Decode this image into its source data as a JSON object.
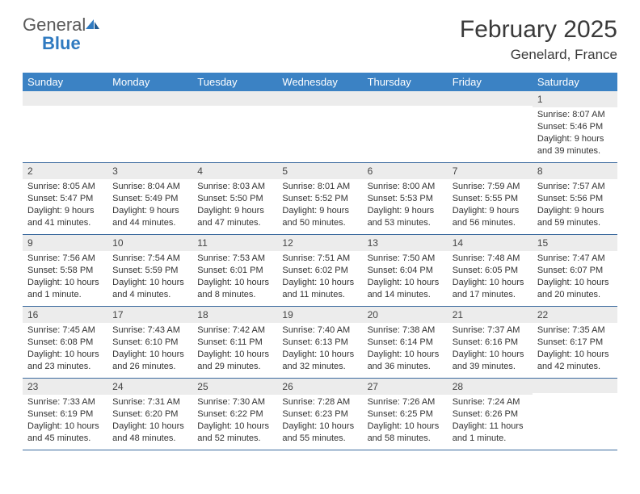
{
  "brand": {
    "part1": "General",
    "part2": "Blue"
  },
  "title": "February 2025",
  "location": "Genelard, France",
  "colors": {
    "header_bar": "#3b82c4",
    "header_text": "#ffffff",
    "daynum_bg": "#ececec",
    "row_border": "#3b6a9e",
    "text": "#333333",
    "logo_gray": "#5a5a5a",
    "logo_blue": "#2f7ac0"
  },
  "days_of_week": [
    "Sunday",
    "Monday",
    "Tuesday",
    "Wednesday",
    "Thursday",
    "Friday",
    "Saturday"
  ],
  "weeks": [
    [
      {
        "n": "",
        "sr": "",
        "ss": "",
        "dl": ""
      },
      {
        "n": "",
        "sr": "",
        "ss": "",
        "dl": ""
      },
      {
        "n": "",
        "sr": "",
        "ss": "",
        "dl": ""
      },
      {
        "n": "",
        "sr": "",
        "ss": "",
        "dl": ""
      },
      {
        "n": "",
        "sr": "",
        "ss": "",
        "dl": ""
      },
      {
        "n": "",
        "sr": "",
        "ss": "",
        "dl": ""
      },
      {
        "n": "1",
        "sr": "Sunrise: 8:07 AM",
        "ss": "Sunset: 5:46 PM",
        "dl": "Daylight: 9 hours and 39 minutes."
      }
    ],
    [
      {
        "n": "2",
        "sr": "Sunrise: 8:05 AM",
        "ss": "Sunset: 5:47 PM",
        "dl": "Daylight: 9 hours and 41 minutes."
      },
      {
        "n": "3",
        "sr": "Sunrise: 8:04 AM",
        "ss": "Sunset: 5:49 PM",
        "dl": "Daylight: 9 hours and 44 minutes."
      },
      {
        "n": "4",
        "sr": "Sunrise: 8:03 AM",
        "ss": "Sunset: 5:50 PM",
        "dl": "Daylight: 9 hours and 47 minutes."
      },
      {
        "n": "5",
        "sr": "Sunrise: 8:01 AM",
        "ss": "Sunset: 5:52 PM",
        "dl": "Daylight: 9 hours and 50 minutes."
      },
      {
        "n": "6",
        "sr": "Sunrise: 8:00 AM",
        "ss": "Sunset: 5:53 PM",
        "dl": "Daylight: 9 hours and 53 minutes."
      },
      {
        "n": "7",
        "sr": "Sunrise: 7:59 AM",
        "ss": "Sunset: 5:55 PM",
        "dl": "Daylight: 9 hours and 56 minutes."
      },
      {
        "n": "8",
        "sr": "Sunrise: 7:57 AM",
        "ss": "Sunset: 5:56 PM",
        "dl": "Daylight: 9 hours and 59 minutes."
      }
    ],
    [
      {
        "n": "9",
        "sr": "Sunrise: 7:56 AM",
        "ss": "Sunset: 5:58 PM",
        "dl": "Daylight: 10 hours and 1 minute."
      },
      {
        "n": "10",
        "sr": "Sunrise: 7:54 AM",
        "ss": "Sunset: 5:59 PM",
        "dl": "Daylight: 10 hours and 4 minutes."
      },
      {
        "n": "11",
        "sr": "Sunrise: 7:53 AM",
        "ss": "Sunset: 6:01 PM",
        "dl": "Daylight: 10 hours and 8 minutes."
      },
      {
        "n": "12",
        "sr": "Sunrise: 7:51 AM",
        "ss": "Sunset: 6:02 PM",
        "dl": "Daylight: 10 hours and 11 minutes."
      },
      {
        "n": "13",
        "sr": "Sunrise: 7:50 AM",
        "ss": "Sunset: 6:04 PM",
        "dl": "Daylight: 10 hours and 14 minutes."
      },
      {
        "n": "14",
        "sr": "Sunrise: 7:48 AM",
        "ss": "Sunset: 6:05 PM",
        "dl": "Daylight: 10 hours and 17 minutes."
      },
      {
        "n": "15",
        "sr": "Sunrise: 7:47 AM",
        "ss": "Sunset: 6:07 PM",
        "dl": "Daylight: 10 hours and 20 minutes."
      }
    ],
    [
      {
        "n": "16",
        "sr": "Sunrise: 7:45 AM",
        "ss": "Sunset: 6:08 PM",
        "dl": "Daylight: 10 hours and 23 minutes."
      },
      {
        "n": "17",
        "sr": "Sunrise: 7:43 AM",
        "ss": "Sunset: 6:10 PM",
        "dl": "Daylight: 10 hours and 26 minutes."
      },
      {
        "n": "18",
        "sr": "Sunrise: 7:42 AM",
        "ss": "Sunset: 6:11 PM",
        "dl": "Daylight: 10 hours and 29 minutes."
      },
      {
        "n": "19",
        "sr": "Sunrise: 7:40 AM",
        "ss": "Sunset: 6:13 PM",
        "dl": "Daylight: 10 hours and 32 minutes."
      },
      {
        "n": "20",
        "sr": "Sunrise: 7:38 AM",
        "ss": "Sunset: 6:14 PM",
        "dl": "Daylight: 10 hours and 36 minutes."
      },
      {
        "n": "21",
        "sr": "Sunrise: 7:37 AM",
        "ss": "Sunset: 6:16 PM",
        "dl": "Daylight: 10 hours and 39 minutes."
      },
      {
        "n": "22",
        "sr": "Sunrise: 7:35 AM",
        "ss": "Sunset: 6:17 PM",
        "dl": "Daylight: 10 hours and 42 minutes."
      }
    ],
    [
      {
        "n": "23",
        "sr": "Sunrise: 7:33 AM",
        "ss": "Sunset: 6:19 PM",
        "dl": "Daylight: 10 hours and 45 minutes."
      },
      {
        "n": "24",
        "sr": "Sunrise: 7:31 AM",
        "ss": "Sunset: 6:20 PM",
        "dl": "Daylight: 10 hours and 48 minutes."
      },
      {
        "n": "25",
        "sr": "Sunrise: 7:30 AM",
        "ss": "Sunset: 6:22 PM",
        "dl": "Daylight: 10 hours and 52 minutes."
      },
      {
        "n": "26",
        "sr": "Sunrise: 7:28 AM",
        "ss": "Sunset: 6:23 PM",
        "dl": "Daylight: 10 hours and 55 minutes."
      },
      {
        "n": "27",
        "sr": "Sunrise: 7:26 AM",
        "ss": "Sunset: 6:25 PM",
        "dl": "Daylight: 10 hours and 58 minutes."
      },
      {
        "n": "28",
        "sr": "Sunrise: 7:24 AM",
        "ss": "Sunset: 6:26 PM",
        "dl": "Daylight: 11 hours and 1 minute."
      },
      {
        "n": "",
        "sr": "",
        "ss": "",
        "dl": ""
      }
    ]
  ]
}
